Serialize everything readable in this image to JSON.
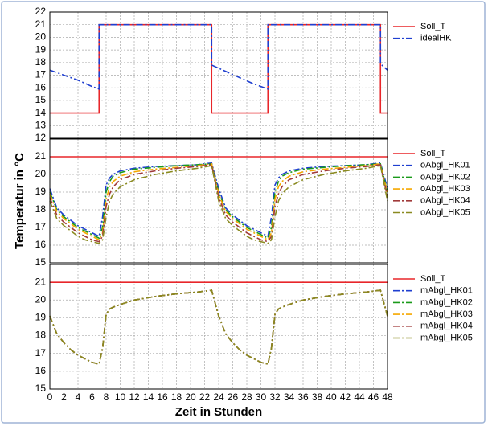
{
  "chart_data": [
    {
      "type": "line",
      "legend": "outside right",
      "grid": true,
      "x": [
        0,
        2,
        4,
        6,
        7,
        7,
        9,
        12,
        15,
        18,
        21,
        23,
        23,
        25,
        27,
        29,
        31,
        31,
        33,
        36,
        39,
        42,
        45,
        47,
        47,
        48
      ],
      "ylim": [
        12,
        22
      ],
      "yticks": [
        12,
        13,
        14,
        15,
        16,
        17,
        18,
        19,
        20,
        21,
        22
      ],
      "series": [
        {
          "name": "Soll_T",
          "color": "#e8262a",
          "linestyle": "solid",
          "values": [
            14,
            14,
            14,
            14,
            14,
            21,
            21,
            21,
            21,
            21,
            21,
            21,
            14,
            14,
            14,
            14,
            14,
            21,
            21,
            21,
            21,
            21,
            21,
            21,
            14,
            14
          ]
        },
        {
          "name": "idealHK",
          "color": "#1f3fd0",
          "linestyle": "dashdot",
          "values": [
            17.4,
            17.0,
            16.6,
            16.1,
            15.9,
            21,
            21,
            21,
            21,
            21,
            21,
            21,
            17.8,
            17.3,
            16.8,
            16.3,
            15.9,
            21,
            21,
            21,
            21,
            21,
            21,
            21,
            17.9,
            17.4
          ]
        }
      ]
    },
    {
      "type": "line",
      "legend": "outside right",
      "grid": true,
      "ylabel": "Temperatur in °C",
      "x": [
        0,
        1,
        2,
        3,
        4,
        5,
        6,
        7,
        7.5,
        8,
        8.5,
        9,
        10,
        12,
        15,
        18,
        21,
        23,
        24,
        25,
        26,
        27,
        28,
        29,
        30,
        31,
        31.5,
        32,
        32.5,
        33,
        34,
        36,
        39,
        42,
        45,
        47,
        48
      ],
      "ylim": [
        15,
        22
      ],
      "yticks": [
        15,
        16,
        17,
        18,
        19,
        20,
        21
      ],
      "series": [
        {
          "name": "Soll_T",
          "color": "#e8262a",
          "linestyle": "solid",
          "values": [
            21,
            21,
            21,
            21,
            21,
            21,
            21,
            21,
            21,
            21,
            21,
            21,
            21,
            21,
            21,
            21,
            21,
            21,
            21,
            21,
            21,
            21,
            21,
            21,
            21,
            21,
            21,
            21,
            21,
            21,
            21,
            21,
            21,
            21,
            21,
            21,
            21
          ]
        },
        {
          "name": "oAbgl_HK01",
          "color": "#1f3fd0",
          "linestyle": "dashdot",
          "values": [
            19.2,
            18.1,
            17.7,
            17.4,
            17.1,
            16.9,
            16.7,
            16.5,
            17.6,
            19.4,
            19.8,
            20.0,
            20.2,
            20.35,
            20.45,
            20.5,
            20.55,
            20.65,
            19.2,
            18.1,
            17.7,
            17.4,
            17.1,
            16.9,
            16.7,
            16.5,
            17.6,
            19.4,
            19.8,
            20.0,
            20.2,
            20.35,
            20.45,
            20.5,
            20.55,
            20.65,
            19.2
          ]
        },
        {
          "name": "oAbgl_HK02",
          "color": "#1a9a1a",
          "linestyle": "dashdot",
          "values": [
            19.0,
            18.0,
            17.6,
            17.3,
            17.0,
            16.8,
            16.6,
            16.4,
            17.0,
            19.0,
            19.6,
            19.9,
            20.1,
            20.3,
            20.4,
            20.5,
            20.55,
            20.6,
            19.0,
            18.0,
            17.6,
            17.3,
            17.0,
            16.8,
            16.6,
            16.4,
            17.0,
            19.0,
            19.6,
            19.9,
            20.1,
            20.3,
            20.4,
            20.5,
            20.55,
            20.6,
            19.0
          ]
        },
        {
          "name": "oAbgl_HK03",
          "color": "#f5a800",
          "linestyle": "dashdot",
          "values": [
            18.9,
            17.9,
            17.5,
            17.2,
            16.9,
            16.7,
            16.5,
            16.3,
            16.7,
            18.6,
            19.3,
            19.6,
            19.9,
            20.15,
            20.3,
            20.4,
            20.5,
            20.6,
            18.9,
            17.9,
            17.5,
            17.2,
            16.9,
            16.7,
            16.5,
            16.3,
            16.7,
            18.6,
            19.3,
            19.6,
            19.9,
            20.15,
            20.3,
            20.4,
            20.5,
            20.6,
            18.9
          ]
        },
        {
          "name": "oAbgl_HK04",
          "color": "#a03a3a",
          "linestyle": "dashdot",
          "values": [
            18.7,
            17.7,
            17.3,
            17.0,
            16.7,
            16.5,
            16.3,
            16.2,
            16.5,
            18.2,
            18.9,
            19.3,
            19.7,
            20.0,
            20.2,
            20.35,
            20.45,
            20.55,
            18.7,
            17.7,
            17.3,
            17.0,
            16.7,
            16.5,
            16.3,
            16.2,
            16.5,
            18.2,
            18.9,
            19.3,
            19.7,
            20.0,
            20.2,
            20.35,
            20.45,
            20.55,
            18.7
          ]
        },
        {
          "name": "oAbgl_HK05",
          "color": "#8a8a20",
          "linestyle": "dashdot",
          "values": [
            18.5,
            17.5,
            17.1,
            16.8,
            16.5,
            16.3,
            16.2,
            16.1,
            16.3,
            17.6,
            18.5,
            18.9,
            19.3,
            19.7,
            20.0,
            20.2,
            20.35,
            20.5,
            18.5,
            17.5,
            17.1,
            16.8,
            16.5,
            16.3,
            16.2,
            16.1,
            16.3,
            17.6,
            18.5,
            18.9,
            19.3,
            19.7,
            20.0,
            20.2,
            20.35,
            20.5,
            18.5
          ]
        }
      ]
    },
    {
      "type": "line",
      "legend": "outside right",
      "grid": true,
      "xlabel": "Zeit in Stunden",
      "x": [
        0,
        1,
        2,
        3,
        4,
        5,
        6,
        7,
        7.5,
        8,
        8.5,
        9,
        10,
        12,
        15,
        18,
        21,
        23,
        24,
        25,
        26,
        27,
        28,
        29,
        30,
        31,
        31.5,
        32,
        32.5,
        33,
        34,
        36,
        39,
        42,
        45,
        47,
        48
      ],
      "xlim": [
        0,
        48
      ],
      "xticks": [
        0,
        2,
        4,
        6,
        8,
        10,
        12,
        14,
        16,
        18,
        20,
        22,
        24,
        26,
        28,
        30,
        32,
        34,
        36,
        38,
        40,
        42,
        44,
        46,
        48
      ],
      "ylim": [
        15,
        22
      ],
      "yticks": [
        15,
        16,
        17,
        18,
        19,
        20,
        21
      ],
      "series": [
        {
          "name": "Soll_T",
          "color": "#e8262a",
          "linestyle": "solid",
          "values": [
            21,
            21,
            21,
            21,
            21,
            21,
            21,
            21,
            21,
            21,
            21,
            21,
            21,
            21,
            21,
            21,
            21,
            21,
            21,
            21,
            21,
            21,
            21,
            21,
            21,
            21,
            21,
            21,
            21,
            21,
            21,
            21,
            21,
            21,
            21,
            21,
            21
          ]
        },
        {
          "name": "mAbgl_HK01",
          "color": "#1f3fd0",
          "linestyle": "dashdot",
          "values": [
            19.1,
            18.1,
            17.6,
            17.2,
            16.9,
            16.7,
            16.5,
            16.4,
            17.3,
            19.2,
            19.5,
            19.6,
            19.75,
            20.0,
            20.2,
            20.35,
            20.45,
            20.55,
            19.1,
            18.1,
            17.6,
            17.2,
            16.9,
            16.7,
            16.5,
            16.4,
            17.3,
            19.2,
            19.5,
            19.6,
            19.75,
            20.0,
            20.2,
            20.35,
            20.45,
            20.55,
            19.1
          ]
        },
        {
          "name": "mAbgl_HK02",
          "color": "#1a9a1a",
          "linestyle": "dashdot",
          "values": [
            19.1,
            18.1,
            17.6,
            17.2,
            16.9,
            16.7,
            16.5,
            16.4,
            17.3,
            19.2,
            19.5,
            19.6,
            19.75,
            20.0,
            20.2,
            20.35,
            20.45,
            20.55,
            19.1,
            18.1,
            17.6,
            17.2,
            16.9,
            16.7,
            16.5,
            16.4,
            17.3,
            19.2,
            19.5,
            19.6,
            19.75,
            20.0,
            20.2,
            20.35,
            20.45,
            20.55,
            19.1
          ]
        },
        {
          "name": "mAbgl_HK03",
          "color": "#f5a800",
          "linestyle": "dashdot",
          "values": [
            19.1,
            18.1,
            17.6,
            17.2,
            16.9,
            16.7,
            16.5,
            16.4,
            17.3,
            19.2,
            19.5,
            19.6,
            19.75,
            20.0,
            20.2,
            20.35,
            20.45,
            20.55,
            19.1,
            18.1,
            17.6,
            17.2,
            16.9,
            16.7,
            16.5,
            16.4,
            17.3,
            19.2,
            19.5,
            19.6,
            19.75,
            20.0,
            20.2,
            20.35,
            20.45,
            20.55,
            19.1
          ]
        },
        {
          "name": "mAbgl_HK04",
          "color": "#a03a3a",
          "linestyle": "dashdot",
          "values": [
            19.1,
            18.1,
            17.6,
            17.2,
            16.9,
            16.7,
            16.5,
            16.4,
            17.3,
            19.2,
            19.5,
            19.6,
            19.75,
            20.0,
            20.2,
            20.35,
            20.45,
            20.55,
            19.1,
            18.1,
            17.6,
            17.2,
            16.9,
            16.7,
            16.5,
            16.4,
            17.3,
            19.2,
            19.5,
            19.6,
            19.75,
            20.0,
            20.2,
            20.35,
            20.45,
            20.55,
            19.1
          ]
        },
        {
          "name": "mAbgl_HK05",
          "color": "#8a8a20",
          "linestyle": "dashdot",
          "values": [
            19.1,
            18.1,
            17.6,
            17.2,
            16.9,
            16.7,
            16.5,
            16.4,
            17.3,
            19.2,
            19.5,
            19.6,
            19.75,
            20.0,
            20.2,
            20.35,
            20.45,
            20.55,
            19.1,
            18.1,
            17.6,
            17.2,
            16.9,
            16.7,
            16.5,
            16.4,
            17.3,
            19.2,
            19.5,
            19.6,
            19.75,
            20.0,
            20.2,
            20.35,
            20.45,
            20.55,
            19.1
          ]
        }
      ]
    }
  ]
}
